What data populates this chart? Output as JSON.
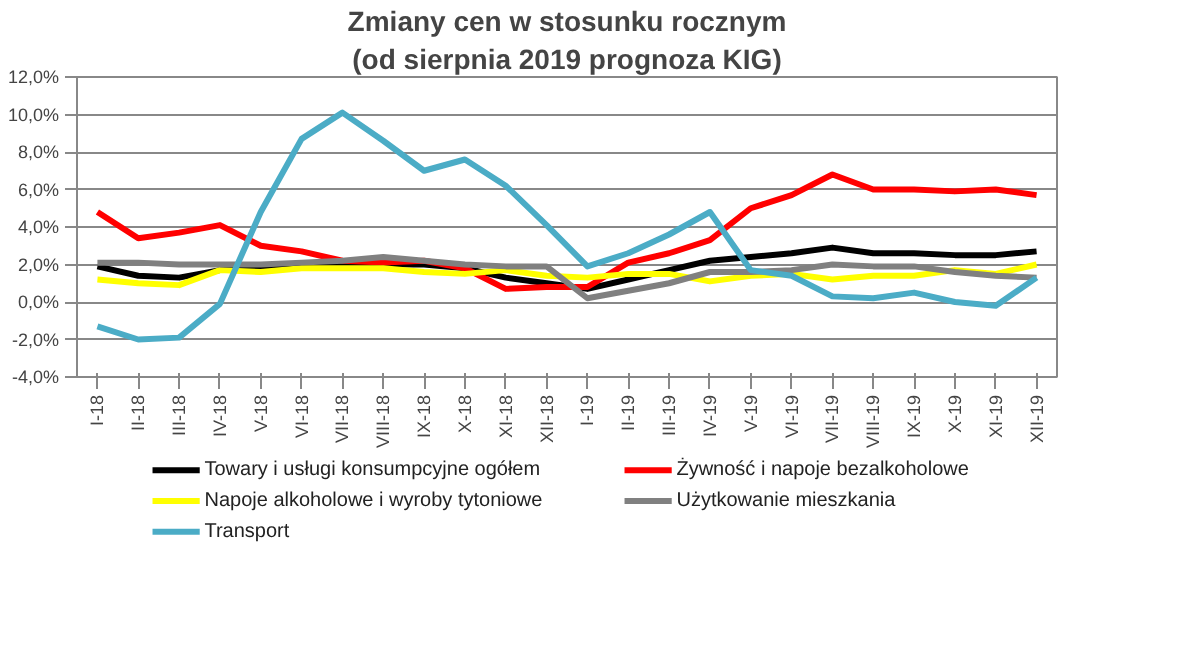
{
  "chart_data": {
    "type": "line",
    "title": "Zmiany cen w stosunku rocznym",
    "subtitle": "(od sierpnia 2019 prognoza KIG)",
    "categories": [
      "I-18",
      "II-18",
      "III-18",
      "IV-18",
      "V-18",
      "VI-18",
      "VII-18",
      "VIII-18",
      "IX-18",
      "X-18",
      "XI-18",
      "XII-18",
      "I-19",
      "II-19",
      "III-19",
      "IV-19",
      "V-19",
      "VI-19",
      "VII-19",
      "VIII-19",
      "IX-19",
      "X-19",
      "XI-19",
      "XII-19"
    ],
    "series": [
      {
        "name": "Towary i usługi konsumpcyjne ogółem",
        "color": "#000000",
        "values": [
          1.9,
          1.4,
          1.3,
          1.7,
          1.8,
          2.0,
          2.0,
          2.0,
          2.0,
          1.8,
          1.3,
          1.0,
          0.7,
          1.2,
          1.7,
          2.2,
          2.4,
          2.6,
          2.9,
          2.6,
          2.6,
          2.5,
          2.5,
          2.7
        ]
      },
      {
        "name": "Żywność i napoje bezalkoholowe",
        "color": "#ff0000",
        "values": [
          4.8,
          3.4,
          3.7,
          4.1,
          3.0,
          2.7,
          2.2,
          2.1,
          2.2,
          1.8,
          0.7,
          0.8,
          0.8,
          2.1,
          2.6,
          3.3,
          5.0,
          5.7,
          6.8,
          6.0,
          6.0,
          5.9,
          6.0,
          5.7
        ]
      },
      {
        "name": "Napoje alkoholowe i wyroby tytoniowe",
        "color": "#ffff00",
        "values": [
          1.2,
          1.0,
          0.9,
          1.7,
          1.6,
          1.8,
          1.8,
          1.8,
          1.6,
          1.5,
          1.7,
          1.4,
          1.3,
          1.5,
          1.5,
          1.1,
          1.4,
          1.5,
          1.2,
          1.4,
          1.4,
          1.7,
          1.5,
          2.0
        ]
      },
      {
        "name": "Użytkowanie mieszkania",
        "color": "#808080",
        "values": [
          2.1,
          2.1,
          2.0,
          2.0,
          2.0,
          2.1,
          2.2,
          2.4,
          2.2,
          2.0,
          1.9,
          1.9,
          0.2,
          0.6,
          1.0,
          1.6,
          1.6,
          1.7,
          2.0,
          1.9,
          1.9,
          1.6,
          1.4,
          1.3
        ]
      },
      {
        "name": "Transport",
        "color": "#4bacc6",
        "values": [
          -1.3,
          -2.0,
          -1.9,
          -0.1,
          4.8,
          8.7,
          10.1,
          8.6,
          7.0,
          7.6,
          6.2,
          4.1,
          1.9,
          2.6,
          3.6,
          4.8,
          1.7,
          1.4,
          0.3,
          0.2,
          0.5,
          0.0,
          -0.2,
          1.3
        ]
      }
    ],
    "ylim": [
      -4,
      12
    ],
    "yticks": [
      {
        "value": -4,
        "label": "-4,0%"
      },
      {
        "value": -2,
        "label": "-2,0%"
      },
      {
        "value": 0,
        "label": "0,0%"
      },
      {
        "value": 2,
        "label": "2,0%"
      },
      {
        "value": 4,
        "label": "4,0%"
      },
      {
        "value": 6,
        "label": "6,0%"
      },
      {
        "value": 8,
        "label": "8,0%"
      },
      {
        "value": 10,
        "label": "10,0%"
      },
      {
        "value": 12,
        "label": "12,0%"
      }
    ],
    "grid": "y",
    "legend": "bottom",
    "marker": "none",
    "line_style": "solid"
  }
}
